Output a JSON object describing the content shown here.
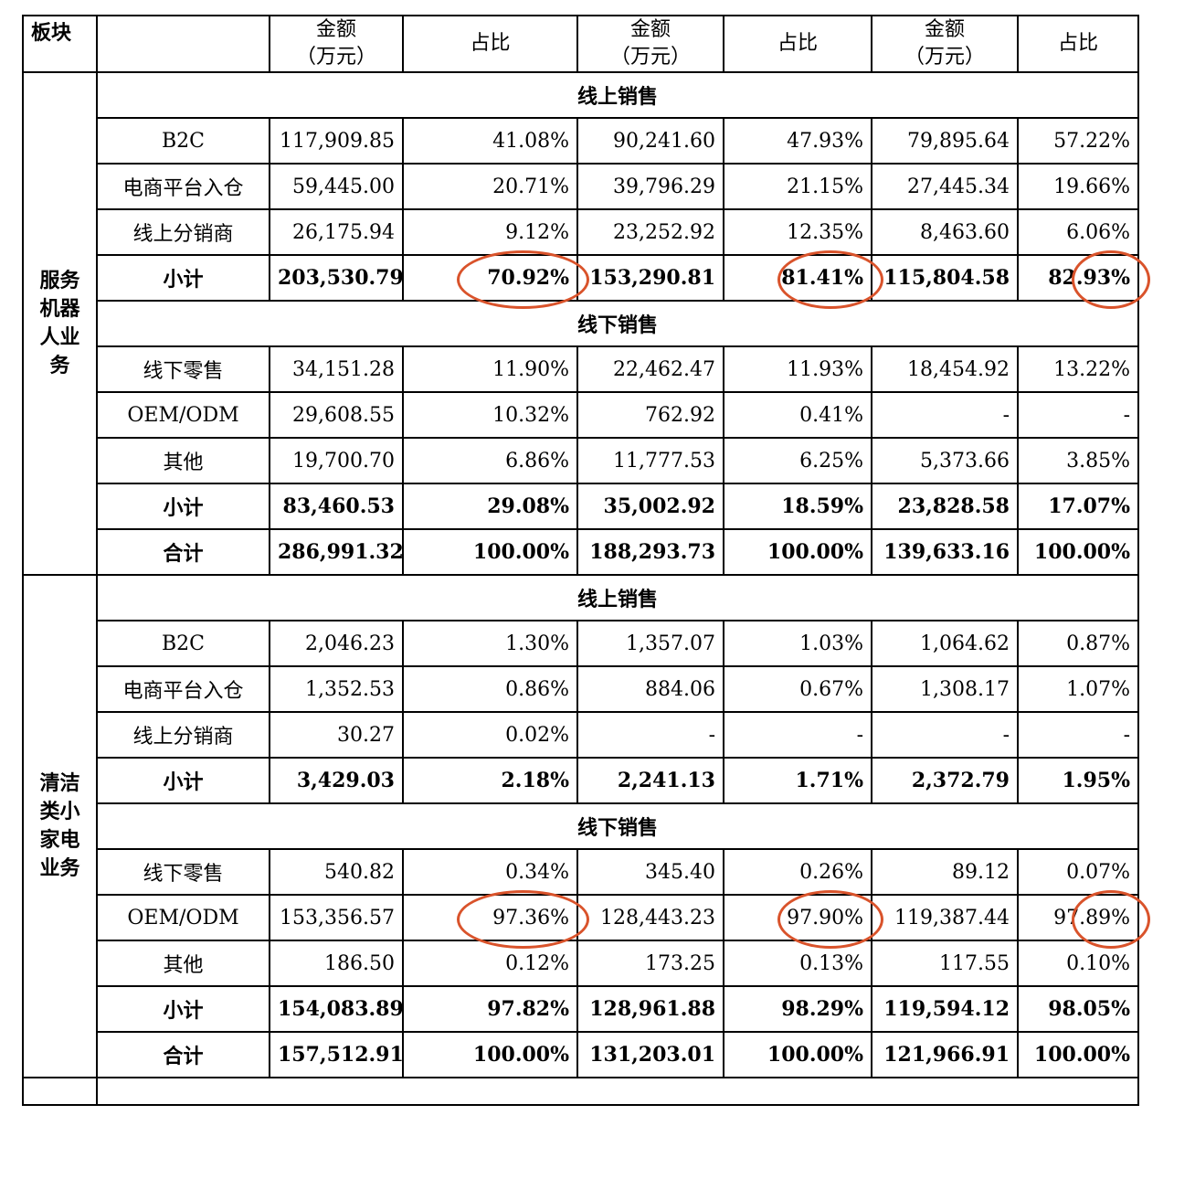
{
  "header": {
    "col0": "板块",
    "col1": "",
    "amount": "金额",
    "amount_unit": "（万元）",
    "ratio": "占比"
  },
  "groups": {
    "online": "线上销售",
    "offline": "线下销售"
  },
  "segments": [
    {
      "name_lines": [
        "服务",
        "机器",
        "人业",
        "务"
      ],
      "online_rows": [
        {
          "label": "B2C",
          "values": [
            "117,909.85",
            "41.08%",
            "90,241.60",
            "47.93%",
            "79,895.64",
            "57.22%"
          ]
        },
        {
          "label": "电商平台入仓",
          "values": [
            "59,445.00",
            "20.71%",
            "39,796.29",
            "21.15%",
            "27,445.34",
            "19.66%"
          ]
        },
        {
          "label": "线上分销商",
          "values": [
            "26,175.94",
            "9.12%",
            "23,252.92",
            "12.35%",
            "8,463.60",
            "6.06%"
          ]
        },
        {
          "label": "小计",
          "values": [
            "203,530.79",
            "70.92%",
            "153,290.81",
            "81.41%",
            "115,804.58",
            "82.93%"
          ]
        }
      ],
      "offline_rows": [
        {
          "label": "线下零售",
          "values": [
            "34,151.28",
            "11.90%",
            "22,462.47",
            "11.93%",
            "18,454.92",
            "13.22%"
          ]
        },
        {
          "label": "OEM/ODM",
          "values": [
            "29,608.55",
            "10.32%",
            "762.92",
            "0.41%",
            "-",
            "-"
          ]
        },
        {
          "label": "其他",
          "values": [
            "19,700.70",
            "6.86%",
            "11,777.53",
            "6.25%",
            "5,373.66",
            "3.85%"
          ]
        },
        {
          "label": "小计",
          "values": [
            "83,460.53",
            "29.08%",
            "35,002.92",
            "18.59%",
            "23,828.58",
            "17.07%"
          ]
        },
        {
          "label": "合计",
          "values": [
            "286,991.32",
            "100.00%",
            "188,293.73",
            "100.00%",
            "139,633.16",
            "100.00%"
          ]
        }
      ]
    },
    {
      "name_lines": [
        "清洁",
        "类小",
        "家电",
        "业务"
      ],
      "online_rows": [
        {
          "label": "B2C",
          "values": [
            "2,046.23",
            "1.30%",
            "1,357.07",
            "1.03%",
            "1,064.62",
            "0.87%"
          ]
        },
        {
          "label": "电商平台入仓",
          "values": [
            "1,352.53",
            "0.86%",
            "884.06",
            "0.67%",
            "1,308.17",
            "1.07%"
          ]
        },
        {
          "label": "线上分销商",
          "values": [
            "30.27",
            "0.02%",
            "-",
            "-",
            "-",
            "-"
          ]
        },
        {
          "label": "小计",
          "values": [
            "3,429.03",
            "2.18%",
            "2,241.13",
            "1.71%",
            "2,372.79",
            "1.95%"
          ]
        }
      ],
      "offline_rows": [
        {
          "label": "线下零售",
          "values": [
            "540.82",
            "0.34%",
            "345.40",
            "0.26%",
            "89.12",
            "0.07%"
          ]
        },
        {
          "label": "OEM/ODM",
          "values": [
            "153,356.57",
            "97.36%",
            "128,443.23",
            "97.90%",
            "119,387.44",
            "97.89%"
          ]
        },
        {
          "label": "其他",
          "values": [
            "186.50",
            "0.12%",
            "173.25",
            "0.13%",
            "117.55",
            "0.10%"
          ]
        },
        {
          "label": "小计",
          "values": [
            "154,083.89",
            "97.82%",
            "128,961.88",
            "98.29%",
            "119,594.12",
            "98.05%"
          ]
        },
        {
          "label": "合计",
          "values": [
            "157,512.91",
            "100.00%",
            "131,203.01",
            "100.00%",
            "121,966.91",
            "100.00%"
          ]
        }
      ]
    }
  ],
  "annotation_color": "#d9532b"
}
